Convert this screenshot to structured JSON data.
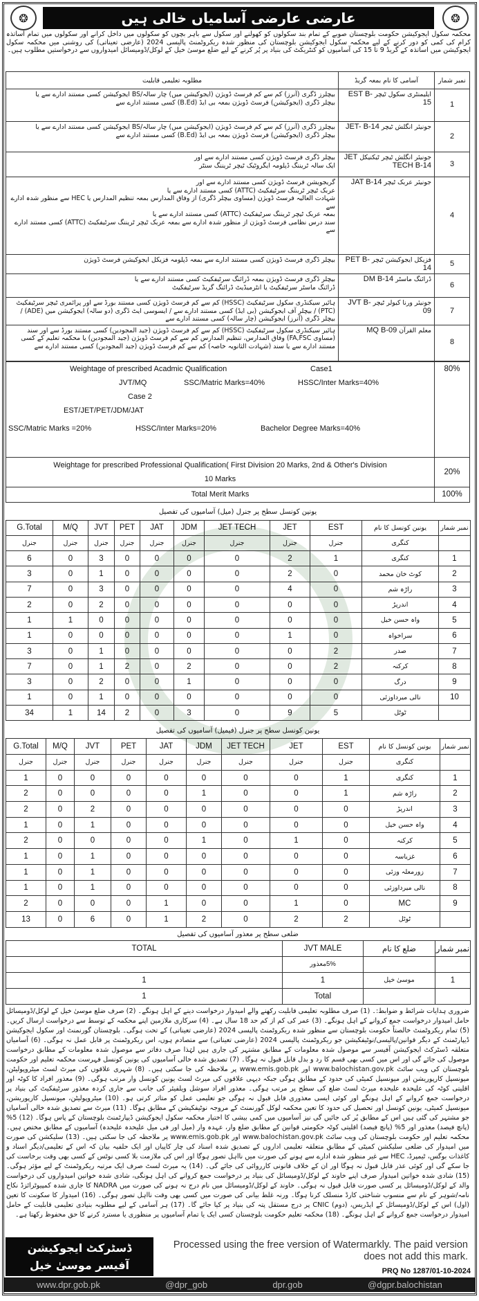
{
  "header": {
    "title": "عارضی عارضی آسامیاں خالی ہیں",
    "logo_left_icon": "balochistan-emblem",
    "logo_right_icon": "balochistan-emblem"
  },
  "intro": "محکمہ سکول ایجوکیشن حکومت بلوچستان صوبے کے تمام بند سکولوں کو کھولنے اور سکول سے باہر بچوں کو سکولوں میں داخل کرانے اور سکولوں میں تمام اساتذہ کرام کی کمی کو دور کرنے کے لیے محکمہ سکول ایجوکیشن بلوچستان کی منظور شدہ ریکروٹمنٹ پالیسی 2024 (عارضی تعیناتی) کی روشنی میں محکمہ سکول ایجوکیشن میں اساتذہ کے گریڈ 9 تا 15 کی آسامیوں کو کنٹریکٹ کی بنیاد پر پُر کرنے کے لیے ضلع موسیٰ خیل کے لوکل/ڈومیسائل امیدواروں سے درخواستیں مطلوب ہیں۔",
  "posts_table": {
    "headers": [
      "نمبر شمار",
      "آسامی کا نام بمعہ گریڈ",
      "مطلوبہ تعلیمی قابلیت"
    ],
    "rows": [
      {
        "no": "1",
        "post": "ایلیمنٹری سکول ٹیچر",
        "code": "EST B-15",
        "qual": [
          "بیچلرز ڈگری (آنرز) کم سے کم فرسٹ ڈویژن (ایجوکیشن میں) چار سالہ/BS ایجوکیشن کسی مستند ادارے سے یا",
          "بیچلر ڈگری (ایجوکیشن) فرسٹ ڈویژن بمعہ بی ایڈ (B.Ed) کسی مستند ادارے سے"
        ]
      },
      {
        "no": "2",
        "post": "جونیئر انگلش ٹیچر",
        "code": "JET- B-14",
        "qual": [
          "بیچلرز ڈگری (آنرز) کم سے کم فرسٹ ڈویژن (ایجوکیشن میں) چار سالہ/BS ایجوکیشن کسی مستند ادارے سے یا",
          "بیچلر ڈگری (ایجوکیشن) فرسٹ ڈویژن بمعہ بی ایڈ (B.Ed) کسی مستند ادارے سے"
        ]
      },
      {
        "no": "3",
        "post": "جونیئر انگلش ٹیچر ٹیکنیکل",
        "code": "JET TECH B-14",
        "qual": [
          "بیچلر ڈگری فرسٹ ڈویژن کسی مستند ادارے سے اور",
          "ایک سالہ ٹریننگ ڈپلومہ ایگروٹیک ٹیچر ٹریننگ سنٹر"
        ]
      },
      {
        "no": "4",
        "post": "جونیئر عربک ٹیچر",
        "code": "JAT B-14",
        "qual": [
          "گریجویشن فرسٹ ڈویژن کسی مستند ادارے سے اور",
          "عربک ٹیچر ٹریننگ سرٹیفکیٹ (ATTC) کسی مستند ادارے سے یا",
          "شہادت العالیہ فرسٹ ڈویژن (مساوی بیچلر ڈگری) از وفاق المدارس بمعہ تنظیم المدارس یا HEC سے منظور شدہ ادارے سے",
          "بمعہ عربک ٹیچر ٹریننگ سرٹیفکیٹ (ATTC) کسی مستند ادارے سے یا",
          "سند درس نظامی فرسٹ ڈویژن از منظور شدہ ادارے سے بمعہ عربک ٹیچر ٹریننگ سرٹیفکیٹ (ATTC) کسی مستند ادارے سے"
        ]
      },
      {
        "no": "5",
        "post": "فزیکل ایجوکیشن ٹیچر",
        "code": "PET B-14",
        "qual": [
          "بیچلر ڈگری فرسٹ ڈویژن کسی مستند ادارے سے بمعہ ڈپلومہ فزیکل ایجوکیشن فرسٹ ڈویژن"
        ]
      },
      {
        "no": "6",
        "post": "ڈرائنگ ماسٹر",
        "code": "DM B-14",
        "qual": [
          "بیچلر ڈگری فرسٹ ڈویژن بمعہ ڈرائنگ سرٹیفکیٹ کسی مستند ادارے سے یا",
          "ڈرائنگ ماسٹر سرٹیفکیٹ یا انٹرمیڈیٹ ڈرائنگ گریڈ سرٹیفکیٹ"
        ]
      },
      {
        "no": "7",
        "post": "جونیئر ورنا کیولر ٹیچر",
        "code": "JVT B-09",
        "qual": [
          "ہائیر سیکنڈری سکول سرٹیفکیٹ (HSSC) کم سے کم فرسٹ ڈویژن کسی مستند بورڈ سے اور پرائمری ٹیچر سرٹیفکیٹ (PTC) / بیچلر آف ایجوکیشن (بی ایڈ) کسی مستند ادارے سے / ایسوسی ایٹ ڈگری (دو سالہ) ایجوکیشن میں (ADE) / بیچلر ڈگری (آنرز) ایجوکیشن (چار سالہ) کسی مستند ادارے سے"
        ]
      },
      {
        "no": "8",
        "post": "معلم القرآن",
        "code": "MQ B-09",
        "qual": [
          "ہائیر سیکنڈری سکول سرٹیفکیٹ (HSSC) کم سے کم فرسٹ ڈویژن (جید المجودین) کسی مستند بورڈ سے اور سند (مساوی FA,FSC) وفاق المدارس، تنظیم المدارس کم سے کم فرسٹ ڈویژن (جید المجودین) یا محکمہ تعلیم کے کسی مستند ادارے سے یا سند (شہادت الثانویہ خاصہ) کم سے کم فرسٹ ڈویژن (جید المجودین) کسی مستند ادارے سے"
        ]
      }
    ]
  },
  "weightage": {
    "academic_title": "Weightage of prescribed Acadmic Qualification",
    "case1": "Case1",
    "case1_posts": "JVT/MQ",
    "case1_ssc": "SSC/Matric Marks=40%",
    "case1_hssc": "HSSC/Inter Marks=40%",
    "case2": "Case  2",
    "case2_posts": "EST/JET/PET/JDM/JAT",
    "case2_ssc": "SSC/Matric Marks =20%",
    "case2_hssc": "HSSC/Inter Marks=20%",
    "case2_bachelor": "Bachelor Degree Marks=40%",
    "academic_pct": "80%",
    "professional_title": "Weightage for prescribed Professional Qualification( First Division 20 Marks, 2nd & Other's Division",
    "professional_title2": "10  Marks",
    "professional_pct": "20%",
    "total_title": "Total  Merit  Marks",
    "total_pct": "100%"
  },
  "male_table": {
    "caption": "یونین کونسل سطح پر جنرل (میل) آسامیوں کی تفصیل",
    "headers": [
      "نمبر شمار",
      "یونین کونسل کا نام",
      "EST",
      "JET",
      "JET TECH",
      "JDM",
      "JAT",
      "PET",
      "JVT",
      "M/Q",
      "G.Total"
    ],
    "subheader": [
      "",
      "کنگری",
      "جنرل",
      "جنرل",
      "جنرل",
      "جنرل",
      "جنرل",
      "جنرل",
      "جنرل",
      "جنرل",
      "جنرل"
    ],
    "rows": [
      [
        "1",
        "کنگری",
        "1",
        "2",
        "0",
        "0",
        "0",
        "0",
        "3",
        "0",
        "6"
      ],
      [
        "2",
        "کوٹ خان محمد",
        "0",
        "2",
        "0",
        "0",
        "0",
        "0",
        "1",
        "0",
        "3"
      ],
      [
        "3",
        "راڑہ شم",
        "0",
        "4",
        "0",
        "0",
        "0",
        "0",
        "3",
        "0",
        "7"
      ],
      [
        "4",
        "اندرپڑ",
        "0",
        "0",
        "0",
        "0",
        "0",
        "0",
        "2",
        "0",
        "2"
      ],
      [
        "5",
        "واہ حسن خیل",
        "0",
        "0",
        "0",
        "0",
        "0",
        "0",
        "0",
        "1",
        "1"
      ],
      [
        "6",
        "سراخواہ",
        "0",
        "1",
        "0",
        "0",
        "0",
        "0",
        "0",
        "0",
        "1"
      ],
      [
        "7",
        "صدر",
        "2",
        "0",
        "0",
        "0",
        "0",
        "0",
        "1",
        "0",
        "3"
      ],
      [
        "8",
        "کرکنہ",
        "2",
        "0",
        "0",
        "2",
        "0",
        "2",
        "1",
        "0",
        "7"
      ],
      [
        "9",
        "درگ",
        "0",
        "0",
        "0",
        "1",
        "0",
        "0",
        "2",
        "0",
        "3"
      ],
      [
        "10",
        "نالی میرداوزئی",
        "0",
        "0",
        "0",
        "0",
        "0",
        "0",
        "1",
        "0",
        "1"
      ],
      [
        "",
        "ٹوٹل",
        "5",
        "9",
        "0",
        "3",
        "0",
        "2",
        "14",
        "1",
        "34"
      ]
    ]
  },
  "female_table": {
    "caption": "یونین کونسل سطح پر جنرل (فیمیل) آسامیوں کی تفصیل",
    "headers": [
      "نمبر شمار",
      "یونین کونسل کا نام",
      "EST",
      "JET",
      "JET TECH",
      "JDM",
      "JAT",
      "PET",
      "JVT",
      "M/Q",
      "G.Total"
    ],
    "subheader": [
      "",
      "کنگری",
      "جنرل",
      "جنرل",
      "جنرل",
      "جنرل",
      "جنرل",
      "جنرل",
      "جنرل",
      "جنرل",
      "جنرل"
    ],
    "rows": [
      [
        "1",
        "کنگری",
        "1",
        "0",
        "0",
        "0",
        "0",
        "0",
        "0",
        "0",
        "1"
      ],
      [
        "2",
        "راڑہ شم",
        "1",
        "0",
        "0",
        "1",
        "0",
        "0",
        "0",
        "0",
        "2"
      ],
      [
        "3",
        "اندرپڑ",
        "0",
        "0",
        "0",
        "0",
        "0",
        "0",
        "2",
        "0",
        "2"
      ],
      [
        "4",
        "واہ حسن خیل",
        "0",
        "0",
        "0",
        "0",
        "0",
        "0",
        "1",
        "0",
        "1"
      ],
      [
        "5",
        "کرکنہ",
        "0",
        "1",
        "0",
        "1",
        "0",
        "0",
        "0",
        "0",
        "2"
      ],
      [
        "6",
        "غزیاسہ",
        "0",
        "0",
        "0",
        "0",
        "0",
        "0",
        "1",
        "0",
        "1"
      ],
      [
        "7",
        "زورمعلہ وزئی",
        "0",
        "0",
        "0",
        "0",
        "0",
        "0",
        "1",
        "0",
        "1"
      ],
      [
        "8",
        "نالی میرداوزئی",
        "0",
        "0",
        "0",
        "0",
        "0",
        "0",
        "1",
        "0",
        "1"
      ],
      [
        "9",
        "MC",
        "0",
        "1",
        "0",
        "0",
        "1",
        "0",
        "0",
        "0",
        "2"
      ],
      [
        "",
        "ٹوٹل",
        "2",
        "2",
        "0",
        "2",
        "1",
        "0",
        "6",
        "0",
        "13"
      ]
    ]
  },
  "disabled_table": {
    "caption": "ضلعی سطح پر معذور آسامیوں کی تفصیل",
    "headers": [
      "نمبر شمار",
      "ضلع کا نام",
      "JVT MALE",
      "TOTAL"
    ],
    "subheader": [
      "",
      "",
      "5%معذور",
      ""
    ],
    "rows": [
      [
        "1",
        "موسیٰ خیل",
        "1",
        "1"
      ],
      [
        "",
        "",
        "Total",
        "1"
      ]
    ]
  },
  "instructions": "ضروری ہدایات شرائط و ضوابط:۔ (1) صرف مطلوبہ تعلیمی قابلیت رکھنے والے امیدوار درخواست دینے کے اہل ہونگے۔ (2) صرف ضلع موسیٰ خیل کے لوکل/ڈومیسائل حامل امیدوار درخواست جمع کروانے کے اہل ہونگے۔ (3) عمر کی کم از کم حد 18 سال ہے۔ (4) سرکاری ملازمین اپنے محکمہ کے توسط سے درخواست ارسال کریں۔ (5) تمام ریکروٹمنٹ خالصتاً حکومت بلوچستان سے منظور شدہ ریکروٹمنٹ پالیسی 2024 (عارضی تعیناتی) کے تحت ہوگی۔ بلوچستان گورنمنٹ اور سکول ایجوکیشن ڈیپارٹمنٹ کے دیگر قوانین/پالیسی/نوٹیفکیشن جو ریکروٹمنٹ پالیسی 2024 (عارضی تعیناتی) سے متصادم ہوں، اس ریکروٹمنٹ پر قابل عمل نہ ہوگی۔ (6) آسامیاں متعلقہ ڈسٹرکٹ ایجوکیشن آفیسر سے موصول شدہ معلومات کے مطابق مشتہر کی جاری ہیں لہٰذا صرف دفاتر سے موصول شدہ معلومات کے مطابق درخواست موصول کی جائے گی اور اس میں کسی بھی قسم کا رد و بدل قابل قبول نہ ہوگا۔ (7) تصدیق شدہ خالی آسامیوں کی یونین کونسل فہرست محکمہ تعلیم اور حکومت بلوچستان کی ویب سائٹ www.balochistan.gov.pk اور www.emis.gob.pk پر ملاحظہ کی جا سکتی ہیں۔ (8) شہری علاقوں کی میرٹ لسٹ میٹروپولیٹن، میونسپل کارپوریشن اور میونسپل کمیٹی کی حدود کے مطابق ہوگی جبکہ دیہی علاقوں کی میرٹ لسٹ یونین کونسل وار مرتب ہوگی۔ (9) معذور افراد کا کوٹہ اور اقلیتی کوٹہ کی علیحدہ علیحدہ میرٹ لسٹ ضلع کی سطح پر مرتب ہوگی۔ معذور افراد سوشل ویلفیئر کی جانب سے جاری کردہ معذور سرٹیفکیٹ کی بنیاد پر درخواست جمع کروانے کے اہل ہونگے اور کوئی ایسی معذوری قابل قبول نہ ہوگی جو تعلیمی عمل کو متاثر کرتی ہو۔ (10) میٹروپولیٹن، میونسپل کارپوریشن، میونسپل کمیٹی، یونین کونسل اور تحصیل کی حدود کا تعین محکمہ لوکل گورنمنٹ کے مروجہ نوٹیفکیشن کے مطابق ہوگا۔ (11) میرٹ سے تصدیق شدہ خالی آسامیاں جو مشتہر کی گئی ہیں اس کے مطابق پُر کی جائیں گی نیز آسامیوں میں کمی بیشی کا اختیار محکمہ سکول ایجوکیشن ڈیپارٹمنٹ بلوچستان کے پاس ہوگا۔ (12) 5% (پانچ فیصد) معذور اور 5% (پانچ فیصد) اقلیتی کوٹہ حکومتی قوانین کے مطابق ضلع وار، عہدہ وار (میل اور فی میل علیحدہ علیحدہ) آسامیوں کے مطابق مختص ہیں۔ محکمہ تعلیم اور حکومت بلوچستان کی ویب سائٹ www.balochistan.gov.pk اور www.emis.gob.pk پر ملاحظہ کی جا سکتی ہیں۔ (13) سلیکشن کی صورت میں امیدوار کی ضلعی سلیکشن کمیٹی کے مطابق متعلقہ تعلیمی اداروں کے تصدیق شدہ اسناد کی چار کاپیاں اور ایک حلفیہ بیان کہ اس کے تعلیمی/دیگر اسناد و کاغذات بوگس، ٹیمپرڈ، HEC سے غیر منظور شدہ ادارے سے ہونے کی صورت میں نااہل تصور ہوگا اور اس کی ملازمت بلا کسی نوٹس کے کسی بھی وقت برخاست کی جا سکے گی اور کوئی عذر قابل قبول نہ ہوگا اور ان کے خلاف قانونی کارروائی کی جائے گی۔ (14) یہ میرٹ لسٹ صرف ایک مرتبہ ریکروٹمنٹ کے لیے مؤثر ہوگی۔ (15) شادی شدہ خواتین امیدوار صرف اپنے خاوند کے لوکل/ڈومیسائل کی بنیاد پر درخواست جمع کروانے کی اہل ہونگی، شادی شدہ خواتین امیدواروں کی درخواست والد کے لوکل/ڈومیسائل پر کسی صورت قابل قبول نہ ہوگی۔ خاوند کے لوکل/ڈومیسائل میں نام درج نہ ہونے کی صورت میں NADRA کا جاری شدہ کمپیوٹرائزڈ نکاح نامہ/شوہر کے نام سے منسوب شناختی کارڈ منسلک کرنا ہوگا۔ ورنہ غلط بیانی کی صورت میں کسی بھی وقت نااہل تصور ہوگی۔ (16) امیدوار کا سکونت کا تعین (اول) اس کے لوکل/ڈومیسائل کے ایڈریس، (دوم) CNIC پر درج مستقل پتہ کی بنیاد پر کیا جائے گا۔ (17) ہر آسامی کے لیے مطلوبہ بنیادی تعلیمی قابلیت کے حامل امیدوار درخواست جمع کروانے کے اہل ہونگے۔ (18) محکمہ تعلیم حکومت بلوچستان کسی ایک یا تمام آسامیوں پر منظوری یا مسترد کرنے کا حق محفوظ رکھتا ہے۔",
  "signature": {
    "line1": "ڈسٹرکٹ ایجوکیشن",
    "line2": "آفیسر موسیٰ خیل"
  },
  "prq": "PRQ No 1287/01-10-2024",
  "footer_bar": [
    "www.dpr.gob.pk",
    "@dpr_gob",
    "dpr.gob",
    "@dgpr.balochistan"
  ],
  "processing_notice": "Processed using the free version of Watermarkly. The paid version does not add this mark.",
  "watermarks": [
    "JobsInBalochistan.com",
    "JOBSINBALOCHISTAN",
    "YOUR CAREER, YOUR CHOICE"
  ]
}
